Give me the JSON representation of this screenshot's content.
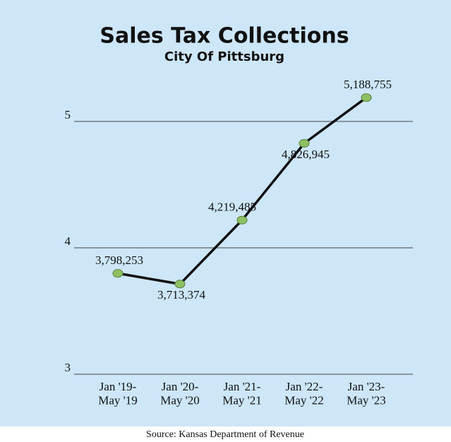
{
  "chart_data": {
    "type": "line",
    "title": "Sales Tax Collections",
    "subtitle": "City Of Pittsburg",
    "categories": [
      "Jan '19-\nMay '19",
      "Jan '20-\nMay '20",
      "Jan '21-\nMay '21",
      "Jan '22-\nMay '22",
      "Jan '23-\nMay '23"
    ],
    "series": [
      {
        "name": "Sales tax collections",
        "color": "#111111",
        "values": [
          3.798253,
          3.713374,
          4.219485,
          4.826945,
          5.188755
        ],
        "value_labels": [
          "3,798,253",
          "3,713,374",
          "4,219,485",
          "4,826,945",
          "5,188,755"
        ]
      }
    ],
    "ylim": [
      3,
      5.3
    ],
    "yticks": [
      3,
      4,
      5
    ],
    "grid": true,
    "marker_color": "#8cc063",
    "source": "Source: Kansas Department of Revenue"
  }
}
